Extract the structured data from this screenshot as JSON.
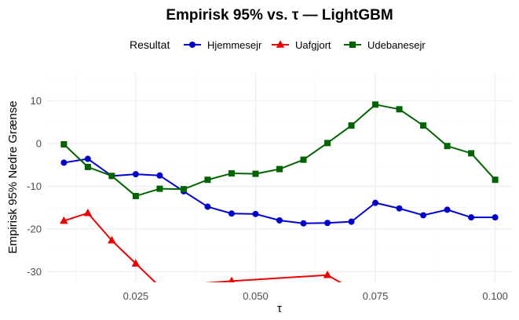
{
  "chart_data": {
    "type": "line",
    "title": "Empirisk 95% vs. τ — LightGBM",
    "xlabel": "τ",
    "ylabel": "Empirisk 95% Nedre Grænse",
    "xlim": [
      0.0065,
      0.1035
    ],
    "ylim": [
      -32.5,
      16.5
    ],
    "x_ticks": [
      0.025,
      0.05,
      0.075,
      0.1
    ],
    "x_tick_labels": [
      "0.025",
      "0.050",
      "0.075",
      "0.100"
    ],
    "y_ticks": [
      -30,
      -20,
      -10,
      0,
      10
    ],
    "y_tick_labels": [
      "-30",
      "-20",
      "-10",
      "0",
      "10"
    ],
    "grid": true,
    "legend": {
      "title": "Resultat",
      "placement": "top"
    },
    "series": [
      {
        "name": "Hjemmesejr",
        "color": "#0000cc",
        "marker": "circle",
        "x": [
          0.01,
          0.015,
          0.02,
          0.025,
          0.03,
          0.035,
          0.04,
          0.045,
          0.05,
          0.055,
          0.06,
          0.065,
          0.07,
          0.075,
          0.08,
          0.085,
          0.09,
          0.095,
          0.1
        ],
        "y": [
          -4.5,
          -3.6,
          -7.6,
          -7.2,
          -7.5,
          -11.2,
          -14.8,
          -16.4,
          -16.5,
          -18.0,
          -18.7,
          -18.6,
          -18.3,
          -13.9,
          -15.2,
          -16.8,
          -15.5,
          -17.3,
          -17.3
        ]
      },
      {
        "name": "Uafgjort",
        "color": "#ee0000",
        "marker": "triangle",
        "x": [
          0.01,
          0.015,
          0.02,
          0.025,
          0.03,
          0.045,
          0.065,
          0.07
        ],
        "y": [
          -18.1,
          -16.3,
          -22.7,
          -28.1,
          -33.5,
          -32.2,
          -30.8,
          -34.0
        ]
      },
      {
        "name": "Udebanesejr",
        "color": "#006400",
        "marker": "square",
        "x": [
          0.01,
          0.015,
          0.02,
          0.025,
          0.03,
          0.035,
          0.04,
          0.045,
          0.05,
          0.055,
          0.06,
          0.065,
          0.07,
          0.075,
          0.08,
          0.085,
          0.09,
          0.095,
          0.1
        ],
        "y": [
          -0.2,
          -5.5,
          -7.6,
          -12.3,
          -10.6,
          -10.7,
          -8.5,
          -7.0,
          -7.1,
          -6.0,
          -3.8,
          0.1,
          4.2,
          9.1,
          8.0,
          4.2,
          -0.6,
          -2.3,
          -8.5
        ]
      }
    ]
  }
}
